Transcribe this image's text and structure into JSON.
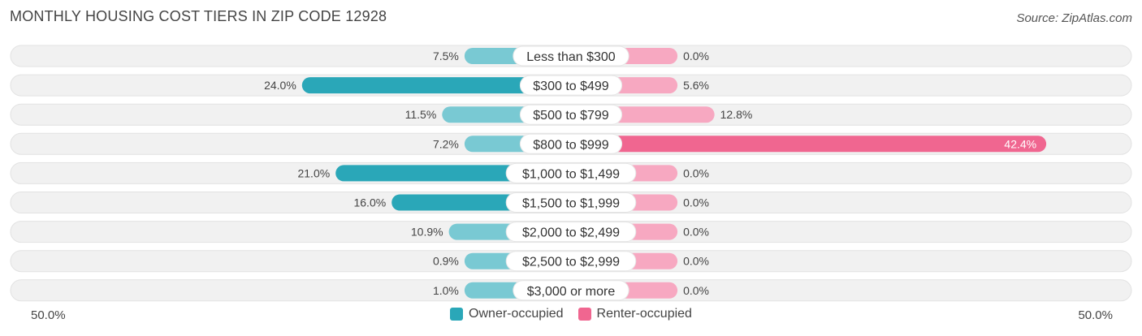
{
  "title": "MONTHLY HOUSING COST TIERS IN ZIP CODE 12928",
  "source": "Source: ZipAtlas.com",
  "axis": {
    "left_label": "50.0%",
    "right_label": "50.0%"
  },
  "legend": {
    "owner_label": "Owner-occupied",
    "renter_label": "Renter-occupied"
  },
  "colors": {
    "owner_strong": "#2aa7b8",
    "owner_light": "#79c9d3",
    "renter_strong": "#f06690",
    "renter_light": "#f7a8c1",
    "row_bg": "#f1f1f1"
  },
  "chart_data": {
    "type": "bar",
    "orientation": "diverging-horizontal",
    "xlim": [
      -50,
      50
    ],
    "categories": [
      "Less than $300",
      "$300 to $499",
      "$500 to $799",
      "$800 to $999",
      "$1,000 to $1,499",
      "$1,500 to $1,999",
      "$2,000 to $2,499",
      "$2,500 to $2,999",
      "$3,000 or more"
    ],
    "series": [
      {
        "name": "Owner-occupied",
        "values": [
          7.5,
          24.0,
          11.5,
          7.2,
          21.0,
          16.0,
          10.9,
          0.9,
          1.0
        ],
        "labels": [
          "7.5%",
          "24.0%",
          "11.5%",
          "7.2%",
          "21.0%",
          "16.0%",
          "10.9%",
          "0.9%",
          "1.0%"
        ]
      },
      {
        "name": "Renter-occupied",
        "values": [
          0.0,
          5.6,
          12.8,
          42.4,
          0.0,
          0.0,
          0.0,
          0.0,
          0.0
        ],
        "labels": [
          "0.0%",
          "5.6%",
          "12.8%",
          "42.4%",
          "0.0%",
          "0.0%",
          "0.0%",
          "0.0%",
          "0.0%"
        ]
      }
    ]
  }
}
